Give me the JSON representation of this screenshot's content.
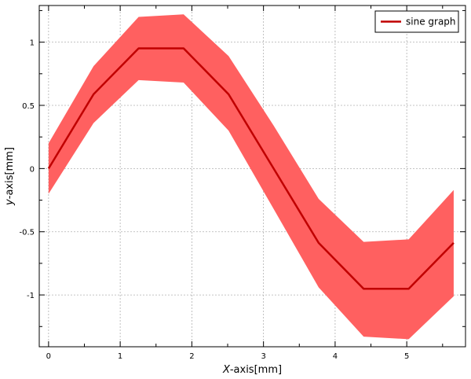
{
  "chart_data": {
    "type": "line",
    "title": "",
    "xlabel": {
      "var": "X",
      "rest": "-axis[mm]"
    },
    "ylabel": {
      "var": "y",
      "rest": "-axis[mm]"
    },
    "xlim": [
      -0.13,
      5.82
    ],
    "ylim": [
      -1.41,
      1.29
    ],
    "grid": true,
    "legend_position": "top-right",
    "xticks": [
      0,
      1,
      2,
      3,
      4,
      5
    ],
    "xtick_labels": [
      "0",
      "1",
      "2",
      "3",
      "4",
      "5"
    ],
    "yticks": [
      -1,
      -0.5,
      0,
      0.5,
      1
    ],
    "ytick_labels": [
      "-1",
      "-0.5",
      "0",
      "0.5",
      "1"
    ],
    "series": [
      {
        "name": "sine graph",
        "color": "#c00000",
        "x": [
          0,
          0.628,
          1.257,
          1.885,
          2.513,
          3.142,
          3.77,
          4.398,
          5.027,
          5.655
        ],
        "y": [
          0,
          0.588,
          0.951,
          0.951,
          0.588,
          0.0,
          -0.588,
          -0.951,
          -0.951,
          -0.588
        ]
      }
    ],
    "band": {
      "color": "#ff6060",
      "x": [
        0,
        0.628,
        1.257,
        1.885,
        2.513,
        3.142,
        3.77,
        4.398,
        5.027,
        5.655
      ],
      "upper": [
        0.2,
        0.81,
        1.2,
        1.22,
        0.89,
        0.34,
        -0.24,
        -0.58,
        -0.56,
        -0.17
      ],
      "lower": [
        -0.2,
        0.36,
        0.7,
        0.68,
        0.3,
        -0.32,
        -0.94,
        -1.33,
        -1.35,
        -1.01
      ]
    }
  }
}
